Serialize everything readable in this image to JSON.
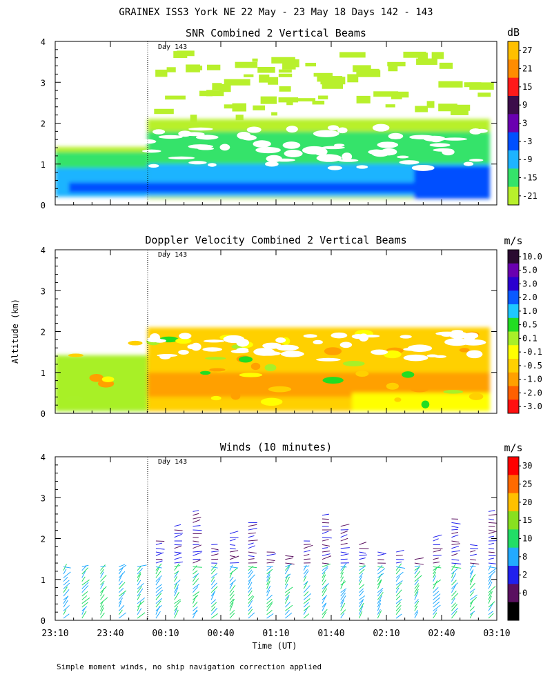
{
  "figure": {
    "title": "GRAINEX ISS3 York NE  22 May - 23 May 18 Days 142 - 143",
    "xlabel": "Time (UT)",
    "ylabel": "Altitude (km)",
    "footnote": "Simple moment winds, no ship navigation correction applied",
    "x_ticks": [
      "23:10",
      "23:40",
      "00:10",
      "00:40",
      "01:10",
      "01:40",
      "02:10",
      "02:40",
      "03:10"
    ],
    "y_ticks": [
      "0",
      "1",
      "2",
      "3",
      "4"
    ],
    "day_marker": "Day 143"
  },
  "chart_data": [
    {
      "type": "heatmap",
      "title": "SNR Combined 2 Vertical Beams",
      "unit": "dB",
      "x_range_hours_ut": [
        23.1667,
        27.1667
      ],
      "ylim": [
        0,
        4
      ],
      "colorbar": {
        "labels": [
          "27",
          "21",
          "15",
          "9",
          "3",
          "-3",
          "-9",
          "-15",
          "-21"
        ],
        "colors": [
          "#ffbf00",
          "#ff8c00",
          "#ff1a1a",
          "#3c0d4a",
          "#6a00b0",
          "#0050ff",
          "#1eb4ff",
          "#35e36a",
          "#b8f02c"
        ]
      },
      "grid": false
    },
    {
      "type": "heatmap",
      "title": "Doppler Velocity Combined 2 Vertical Beams",
      "unit": "m/s",
      "x_range_hours_ut": [
        23.1667,
        27.1667
      ],
      "ylim": [
        0,
        4
      ],
      "colorbar": {
        "labels": [
          "10.0",
          "5.0",
          "3.0",
          "2.0",
          "1.0",
          "0.5",
          "0.1",
          "-0.1",
          "-0.5",
          "-1.0",
          "-2.0",
          "-3.0"
        ],
        "colors": [
          "#2a0a30",
          "#6a00b0",
          "#2a00d0",
          "#0a5aff",
          "#1ec8ff",
          "#22dd22",
          "#a8f028",
          "#ffff00",
          "#ffd000",
          "#ffa000",
          "#ff6000",
          "#ff1010"
        ]
      },
      "grid": false
    },
    {
      "type": "scatter",
      "title": "Winds (10 minutes)",
      "unit": "m/s",
      "x_range_hours_ut": [
        23.1667,
        27.1667
      ],
      "ylim": [
        0,
        4
      ],
      "colorbar": {
        "labels": [
          "30",
          "25",
          "20",
          "15",
          "10",
          "8",
          "2",
          "0"
        ],
        "colors": [
          "#ff0000",
          "#ff6a00",
          "#ffc000",
          "#88e020",
          "#22dd66",
          "#22aaff",
          "#2020ee",
          "#5a1060",
          "#000000"
        ]
      },
      "grid": false
    }
  ]
}
